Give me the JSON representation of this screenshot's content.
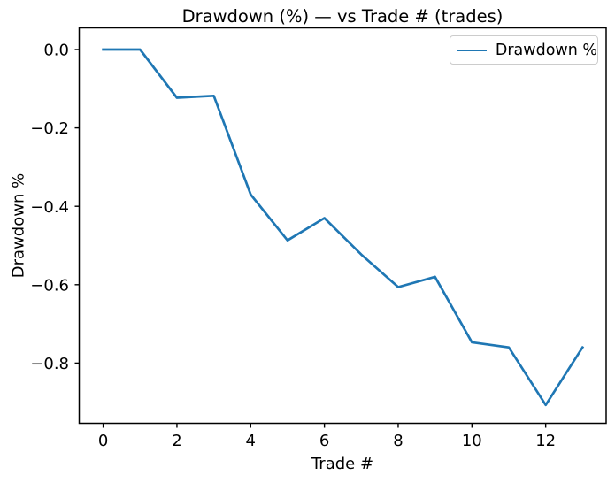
{
  "chart_data": {
    "type": "line",
    "title": "Drawdown (%) — vs Trade # (trades)",
    "xlabel": "Trade #",
    "ylabel": "Drawdown %",
    "x": [
      0,
      1,
      2,
      3,
      4,
      5,
      6,
      7,
      8,
      9,
      10,
      11,
      12,
      13
    ],
    "series": [
      {
        "name": "Drawdown %",
        "color": "#1f77b4",
        "values": [
          0.0,
          0.0,
          -0.123,
          -0.118,
          -0.37,
          -0.487,
          -0.43,
          -0.523,
          -0.606,
          -0.58,
          -0.747,
          -0.76,
          -0.907,
          -0.76
        ]
      }
    ],
    "xticks": {
      "values": [
        0,
        2,
        4,
        6,
        8,
        10,
        12
      ],
      "labels": [
        "0",
        "2",
        "4",
        "6",
        "8",
        "10",
        "12"
      ]
    },
    "yticks": {
      "values": [
        0.0,
        -0.2,
        -0.4,
        -0.6,
        -0.8
      ],
      "labels": [
        "0.0",
        "−0.2",
        "−0.4",
        "−0.6",
        "−0.8"
      ]
    },
    "xlim": [
      -0.65,
      13.64
    ],
    "ylim": [
      -0.9537,
      0.0553
    ],
    "grid": false,
    "legend": {
      "position": "upper right",
      "entries": [
        "Drawdown %"
      ]
    }
  },
  "colors": {
    "line": "#1f77b4",
    "axes": "#000000",
    "text": "#000000",
    "background": "#ffffff",
    "legend_border": "#cccccc"
  }
}
